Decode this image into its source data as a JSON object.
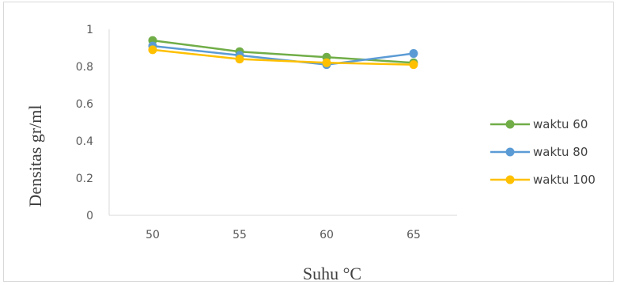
{
  "chart_data": {
    "type": "line",
    "xlabel": "Suhu °C",
    "ylabel": "Densitas gr/ml",
    "categories": [
      "50",
      "55",
      "60",
      "65"
    ],
    "ylim": [
      0,
      1
    ],
    "y_ticks": [
      "0",
      "0.2",
      "0.4",
      "0.6",
      "0.8",
      "1"
    ],
    "grid": false,
    "legend_position": "right",
    "series": [
      {
        "name": "waktu 60",
        "color": "#70ad47",
        "values": [
          0.94,
          0.88,
          0.85,
          0.82
        ]
      },
      {
        "name": "waktu 80",
        "color": "#5b9bd5",
        "values": [
          0.91,
          0.86,
          0.81,
          0.87
        ]
      },
      {
        "name": "waktu 100",
        "color": "#ffc000",
        "values": [
          0.89,
          0.84,
          0.82,
          0.81
        ]
      }
    ]
  }
}
